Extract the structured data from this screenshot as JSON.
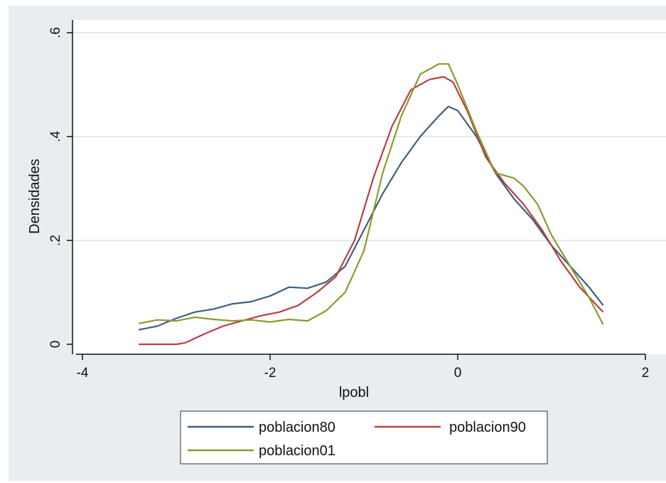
{
  "chart_data": {
    "type": "line",
    "title": "",
    "xlabel": "lpobl",
    "ylabel": "Densidades",
    "xlim": [
      -4,
      2
    ],
    "ylim": [
      0,
      0.6
    ],
    "x_ticks": [
      "-4",
      "-2",
      "0",
      "2"
    ],
    "x_tick_values": [
      -4,
      -2,
      0,
      2
    ],
    "y_ticks": [
      "0",
      ".2",
      ".4",
      ".6"
    ],
    "y_tick_values": [
      0,
      0.2,
      0.4,
      0.6
    ],
    "grid": "horizontal",
    "legend_position": "bottom",
    "series": [
      {
        "name": "poblacion80",
        "color": "#3f5f7e",
        "x": [
          -3.4,
          -3.2,
          -3.0,
          -2.8,
          -2.6,
          -2.4,
          -2.2,
          -2.0,
          -1.8,
          -1.6,
          -1.4,
          -1.2,
          -1.0,
          -0.8,
          -0.6,
          -0.4,
          -0.2,
          -0.1,
          0.0,
          0.2,
          0.4,
          0.6,
          0.8,
          1.0,
          1.2,
          1.4,
          1.55
        ],
        "y": [
          0.028,
          0.035,
          0.05,
          0.062,
          0.068,
          0.078,
          0.082,
          0.093,
          0.11,
          0.108,
          0.12,
          0.15,
          0.22,
          0.29,
          0.35,
          0.4,
          0.44,
          0.458,
          0.45,
          0.4,
          0.33,
          0.28,
          0.24,
          0.19,
          0.15,
          0.11,
          0.075
        ]
      },
      {
        "name": "poblacion90",
        "color": "#b9403f",
        "x": [
          -3.4,
          -3.2,
          -3.0,
          -2.9,
          -2.7,
          -2.5,
          -2.3,
          -2.1,
          -1.9,
          -1.7,
          -1.5,
          -1.3,
          -1.1,
          -0.9,
          -0.7,
          -0.5,
          -0.3,
          -0.15,
          -0.05,
          0.1,
          0.3,
          0.5,
          0.7,
          0.9,
          1.1,
          1.3,
          1.55
        ],
        "y": [
          0.0,
          0.0,
          0.0,
          0.003,
          0.02,
          0.035,
          0.045,
          0.055,
          0.062,
          0.075,
          0.1,
          0.13,
          0.2,
          0.32,
          0.42,
          0.49,
          0.51,
          0.515,
          0.505,
          0.45,
          0.36,
          0.31,
          0.27,
          0.22,
          0.16,
          0.11,
          0.062
        ]
      },
      {
        "name": "poblacion01",
        "color": "#8b9a2e",
        "x": [
          -3.4,
          -3.2,
          -3.0,
          -2.8,
          -2.6,
          -2.4,
          -2.2,
          -2.0,
          -1.8,
          -1.6,
          -1.4,
          -1.2,
          -1.0,
          -0.8,
          -0.6,
          -0.4,
          -0.2,
          -0.1,
          0.0,
          0.2,
          0.4,
          0.6,
          0.7,
          0.85,
          1.0,
          1.2,
          1.4,
          1.55
        ],
        "y": [
          0.04,
          0.047,
          0.045,
          0.052,
          0.048,
          0.045,
          0.047,
          0.043,
          0.048,
          0.045,
          0.065,
          0.1,
          0.18,
          0.33,
          0.44,
          0.52,
          0.54,
          0.54,
          0.5,
          0.41,
          0.33,
          0.32,
          0.305,
          0.27,
          0.21,
          0.15,
          0.09,
          0.038
        ]
      }
    ]
  }
}
